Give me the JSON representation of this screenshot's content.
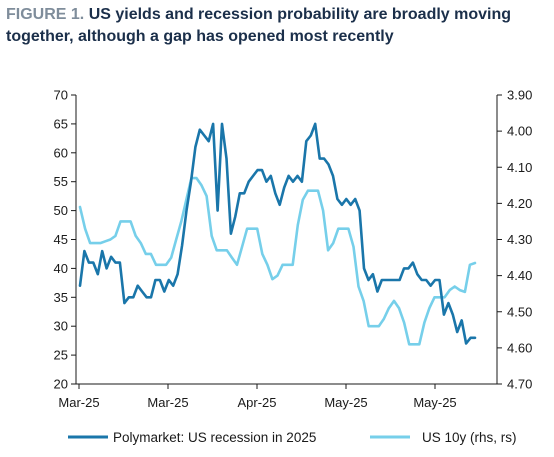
{
  "header": {
    "figure_label": "FIGURE 1.",
    "title": "US yields and recession probability are broadly moving together, although a gap has opened most recently"
  },
  "colors": {
    "polymarket": "#1a76aa",
    "us10y": "#76cfea",
    "axis": "#1a1a1a"
  },
  "chart_data": {
    "type": "line",
    "x_tick_labels": [
      "Mar-25",
      "Mar-25",
      "Apr-25",
      "May-25",
      "May-25"
    ],
    "left_axis": {
      "ylim": [
        20,
        70
      ],
      "ticks": [
        20,
        25,
        30,
        35,
        40,
        45,
        50,
        55,
        60,
        65,
        70
      ]
    },
    "right_axis": {
      "ylim": [
        3.9,
        4.7
      ],
      "inverted": true,
      "ticks": [
        "3.90",
        "4.00",
        "4.10",
        "4.20",
        "4.30",
        "4.40",
        "4.50",
        "4.60",
        "4.70"
      ]
    },
    "legend_position": "bottom",
    "series": [
      {
        "name": "Polymarket: US recession in 2025",
        "axis": "left",
        "values": [
          37,
          43,
          41,
          41,
          39,
          43,
          40,
          42,
          41,
          41,
          34,
          35,
          35,
          37,
          36,
          35,
          35,
          38,
          38,
          36,
          38,
          37,
          39,
          44,
          50,
          55,
          61,
          64,
          63,
          62,
          65,
          50,
          65,
          59,
          46,
          49,
          53,
          53,
          55,
          56,
          57,
          57,
          55,
          56,
          53,
          51,
          54,
          56,
          55,
          56,
          55,
          62,
          63,
          65,
          59,
          59,
          58,
          56,
          52,
          51,
          52,
          51,
          52,
          50,
          40,
          38,
          39,
          36,
          38,
          38,
          38,
          38,
          38,
          40,
          40,
          41,
          39,
          38,
          38,
          37,
          38,
          38,
          32,
          34,
          32,
          29,
          31,
          27,
          28,
          28
        ]
      },
      {
        "name": "US 10y (rhs, rs)",
        "axis": "right",
        "values": [
          4.21,
          4.27,
          4.31,
          4.31,
          4.31,
          4.305,
          4.3,
          4.29,
          4.25,
          4.25,
          4.25,
          4.29,
          4.31,
          4.34,
          4.34,
          4.37,
          4.37,
          4.37,
          4.35,
          4.3,
          4.25,
          4.19,
          4.13,
          4.13,
          4.15,
          4.18,
          4.29,
          4.33,
          4.33,
          4.33,
          4.35,
          4.37,
          4.32,
          4.27,
          4.27,
          4.27,
          4.34,
          4.37,
          4.41,
          4.4,
          4.37,
          4.37,
          4.37,
          4.26,
          4.19,
          4.165,
          4.165,
          4.165,
          4.22,
          4.33,
          4.31,
          4.27,
          4.27,
          4.27,
          4.32,
          4.43,
          4.47,
          4.54,
          4.54,
          4.54,
          4.52,
          4.49,
          4.47,
          4.49,
          4.53,
          4.59,
          4.59,
          4.59,
          4.53,
          4.49,
          4.46,
          4.46,
          4.46,
          4.44,
          4.43,
          4.44,
          4.445,
          4.37,
          4.365
        ]
      }
    ]
  }
}
